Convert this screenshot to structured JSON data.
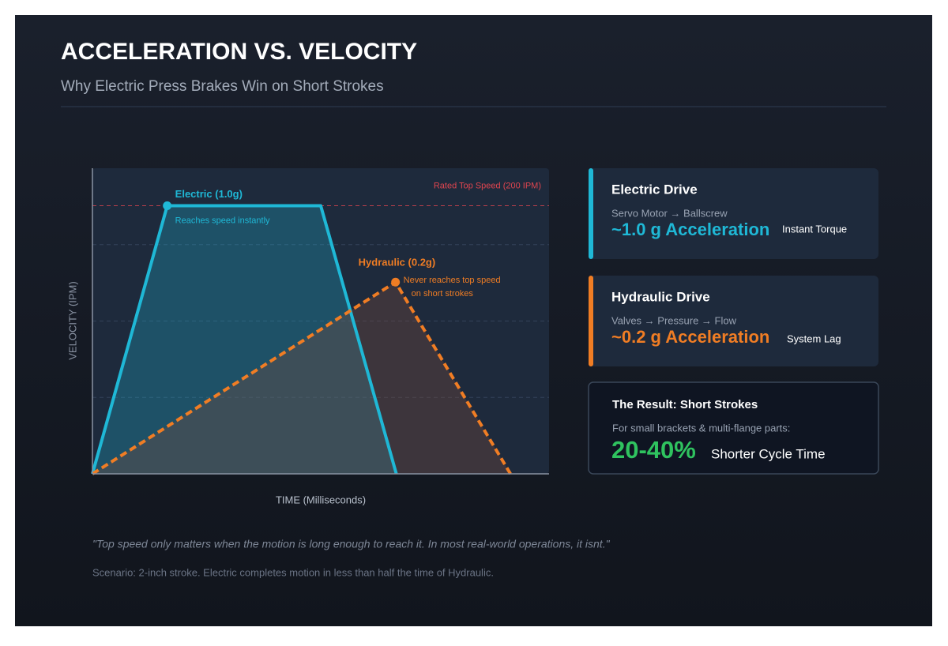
{
  "header": {
    "title": "ACCELERATION VS. VELOCITY",
    "subtitle": "Why Electric Press Brakes Win on Short Strokes"
  },
  "chart_data": {
    "type": "line",
    "xlabel": "TIME (Milliseconds)",
    "ylabel": "VELOCITY (IPM)",
    "xlim": [
      0,
      580
    ],
    "ylim": [
      0,
      228
    ],
    "ygrid": [
      57,
      114,
      171
    ],
    "reference": {
      "label": "Rated Top Speed (200 IPM)",
      "value": 200,
      "color": "#e0454f"
    },
    "series": [
      {
        "name": "Electric (1.0g)",
        "color": "#1fb8d6",
        "dashed": false,
        "x": [
          0,
          95,
          290,
          386
        ],
        "values": [
          0,
          200,
          200,
          0
        ],
        "note": [
          "Reaches speed instantly"
        ]
      },
      {
        "name": "Hydraulic (0.2g)",
        "color": "#f07d24",
        "dashed": true,
        "x": [
          0,
          385,
          531
        ],
        "values": [
          0,
          143,
          0
        ],
        "note": [
          "Never reaches top speed",
          "on short strokes"
        ]
      }
    ]
  },
  "cards": [
    {
      "title": "Electric Drive",
      "path": "Servo Motor → Ballscrew",
      "metric": "~1.0 g Acceleration",
      "tag": "Instant Torque"
    },
    {
      "title": "Hydraulic Drive",
      "path": "Valves → Pressure → Flow",
      "metric": "~0.2 g Acceleration",
      "tag": "System Lag"
    }
  ],
  "result": {
    "title": "The Result: Short Strokes",
    "text": "For small brackets & multi-flange parts:",
    "metric": "20-40%",
    "tag": "Shorter Cycle Time"
  },
  "quote": "\"Top speed only matters when the motion is long enough to reach it. In most real-world operations, it isnt.\"",
  "scenario": "Scenario: 2-inch stroke. Electric completes motion in less than half the time of Hydraulic."
}
